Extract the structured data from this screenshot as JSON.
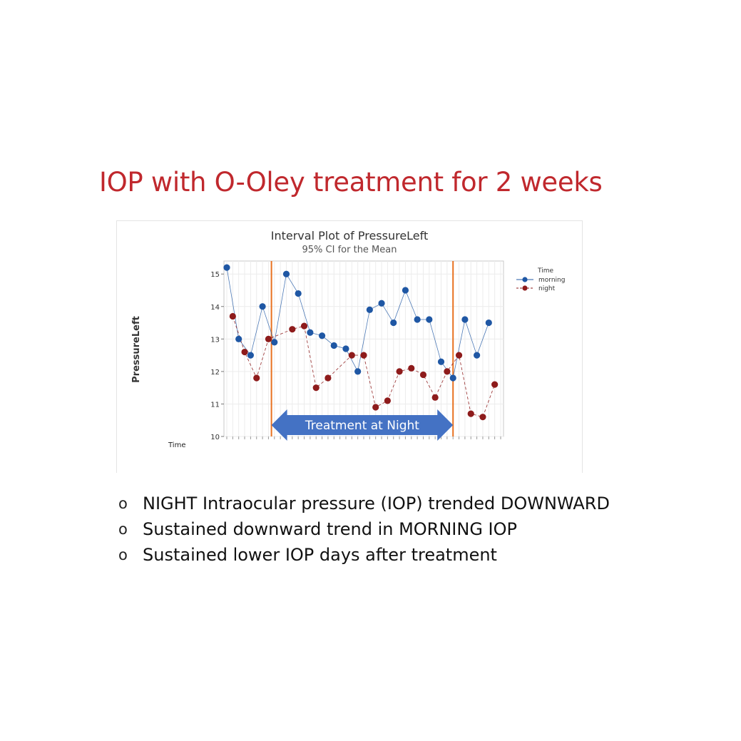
{
  "slide": {
    "title": "IOP with O-Oley treatment for 2 weeks",
    "bullet_marker": "o",
    "bullets": [
      "NIGHT Intraocular pressure (IOP) trended DOWNWARD",
      "Sustained downward trend in MORNING IOP",
      "Sustained lower IOP days after treatment"
    ]
  },
  "chart_data": {
    "type": "line",
    "title": "Interval Plot of PressureLeft",
    "subtitle": "95% CI for the Mean",
    "ylabel": "PressureLeft",
    "xlabel": "Time",
    "ylim": [
      10,
      15.4
    ],
    "yticks": [
      10,
      11,
      12,
      13,
      14,
      15
    ],
    "xlim": [
      0,
      46
    ],
    "grid": true,
    "legend": {
      "title": "Time",
      "position": "right"
    },
    "series": [
      {
        "name": "morning",
        "color": "#1f57a4",
        "line_style": "solid",
        "x": [
          0,
          2,
          4,
          6,
          8,
          10,
          12,
          14,
          16,
          18,
          20,
          22,
          24,
          26,
          28,
          30,
          32,
          34,
          36,
          38,
          40,
          42,
          44
        ],
        "y": [
          15.2,
          13.0,
          12.5,
          14.0,
          12.9,
          15.0,
          14.4,
          13.2,
          13.1,
          12.8,
          12.7,
          12.0,
          13.9,
          14.1,
          13.5,
          14.5,
          13.6,
          13.6,
          12.3,
          11.8,
          13.6,
          12.5,
          13.5
        ]
      },
      {
        "name": "night",
        "color": "#8e1b1b",
        "line_style": "dashed",
        "x": [
          1,
          3,
          5,
          7,
          11,
          13,
          15,
          17,
          21,
          23,
          25,
          27,
          29,
          31,
          33,
          35,
          37,
          39,
          41,
          43,
          45
        ],
        "y": [
          13.7,
          12.6,
          11.8,
          13.0,
          13.3,
          13.4,
          11.5,
          11.8,
          12.5,
          12.5,
          10.9,
          11.1,
          12.0,
          12.1,
          11.9,
          11.2,
          12.0,
          12.5,
          10.7,
          10.6,
          11.6
        ]
      }
    ],
    "reference_lines": {
      "x": [
        7.5,
        38
      ],
      "color": "#e8711f"
    },
    "annotation": {
      "text": "Treatment at Night",
      "x_range": [
        7.5,
        38
      ],
      "y": 10.35,
      "color": "#4472c4",
      "text_color": "#ffffff"
    }
  }
}
